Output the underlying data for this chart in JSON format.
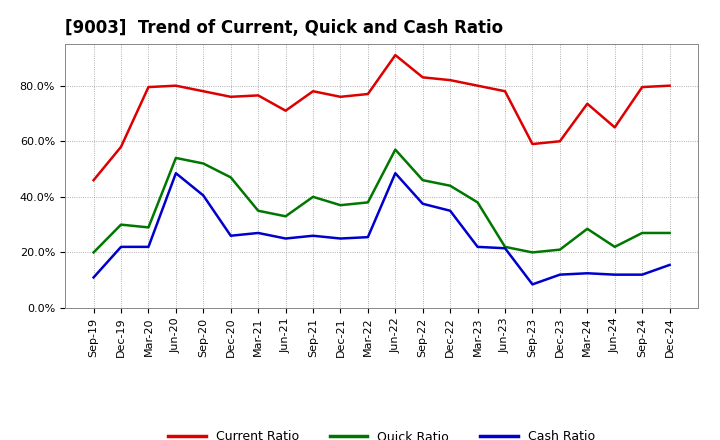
{
  "title": "[9003]  Trend of Current, Quick and Cash Ratio",
  "x_labels": [
    "Sep-19",
    "Dec-19",
    "Mar-20",
    "Jun-20",
    "Sep-20",
    "Dec-20",
    "Mar-21",
    "Jun-21",
    "Sep-21",
    "Dec-21",
    "Mar-22",
    "Jun-22",
    "Sep-22",
    "Dec-22",
    "Mar-23",
    "Jun-23",
    "Sep-23",
    "Dec-23",
    "Mar-24",
    "Jun-24",
    "Sep-24",
    "Dec-24"
  ],
  "current_ratio": [
    46.0,
    58.0,
    79.5,
    80.0,
    78.0,
    76.0,
    76.5,
    71.0,
    78.0,
    76.0,
    77.0,
    91.0,
    83.0,
    82.0,
    80.0,
    78.0,
    59.0,
    60.0,
    73.5,
    65.0,
    79.5,
    80.0
  ],
  "quick_ratio": [
    20.0,
    30.0,
    29.0,
    54.0,
    52.0,
    47.0,
    35.0,
    33.0,
    40.0,
    37.0,
    38.0,
    57.0,
    46.0,
    44.0,
    38.0,
    22.0,
    20.0,
    21.0,
    28.5,
    22.0,
    27.0,
    27.0
  ],
  "cash_ratio": [
    11.0,
    22.0,
    22.0,
    48.5,
    40.5,
    26.0,
    27.0,
    25.0,
    26.0,
    25.0,
    25.5,
    48.5,
    37.5,
    35.0,
    22.0,
    21.5,
    8.5,
    12.0,
    12.5,
    12.0,
    12.0,
    15.5
  ],
  "current_color": "#dd0000",
  "quick_color": "#007700",
  "cash_color": "#0000cc",
  "background_color": "#ffffff",
  "grid_color": "#999999",
  "ylim": [
    0,
    95
  ],
  "yticks": [
    0,
    20,
    40,
    60,
    80
  ],
  "ytick_labels": [
    "0.0%",
    "20.0%",
    "40.0%",
    "60.0%",
    "80.0%"
  ],
  "legend_labels": [
    "Current Ratio",
    "Quick Ratio",
    "Cash Ratio"
  ],
  "title_fontsize": 12,
  "axis_fontsize": 8,
  "legend_fontsize": 9,
  "linewidth": 1.8
}
